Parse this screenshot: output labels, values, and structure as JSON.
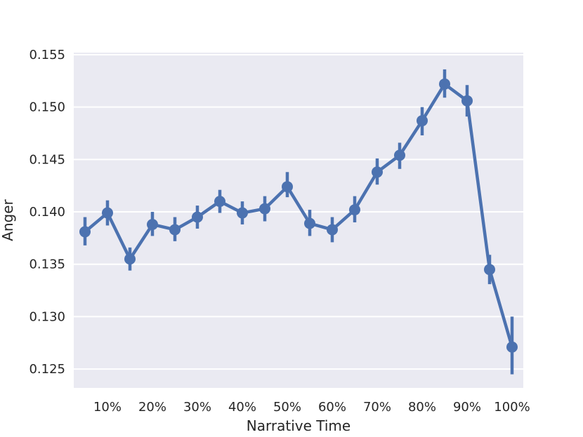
{
  "chart_data": {
    "type": "line",
    "xlabel": "Narrative Time",
    "ylabel": "Anger",
    "ylim": [
      0.1232,
      0.1552
    ],
    "yticks": [
      "0.125",
      "0.130",
      "0.135",
      "0.140",
      "0.145",
      "0.150",
      "0.155"
    ],
    "x_tick_labels": [
      "10%",
      "20%",
      "30%",
      "40%",
      "50%",
      "60%",
      "70%",
      "80%",
      "90%",
      "100%"
    ],
    "grid": true,
    "background_color": "#eaeaf2",
    "line_color": "#4c72b0",
    "series": [
      {
        "x": [
          "5%",
          "10%",
          "15%",
          "20%",
          "25%",
          "30%",
          "35%",
          "40%",
          "45%",
          "50%",
          "55%",
          "60%",
          "65%",
          "70%",
          "75%",
          "80%",
          "85%",
          "90%",
          "95%",
          "100%"
        ],
        "values": [
          0.1381,
          0.1399,
          0.1355,
          0.1388,
          0.1383,
          0.1395,
          0.141,
          0.1399,
          0.1403,
          0.1424,
          0.1389,
          0.1383,
          0.1402,
          0.1438,
          0.1454,
          0.1487,
          0.1522,
          0.1506,
          0.1345,
          0.1271
        ],
        "error_low": [
          0.1368,
          0.1387,
          0.1344,
          0.1377,
          0.1372,
          0.1384,
          0.1399,
          0.1388,
          0.1391,
          0.1414,
          0.1377,
          0.1371,
          0.139,
          0.1426,
          0.1441,
          0.1473,
          0.1509,
          0.1491,
          0.1331,
          0.1245
        ],
        "error_high": [
          0.1395,
          0.1411,
          0.1366,
          0.14,
          0.1395,
          0.1406,
          0.1421,
          0.141,
          0.1415,
          0.1438,
          0.1402,
          0.1395,
          0.1415,
          0.1451,
          0.1466,
          0.15,
          0.1536,
          0.1521,
          0.1359,
          0.13
        ]
      }
    ]
  }
}
